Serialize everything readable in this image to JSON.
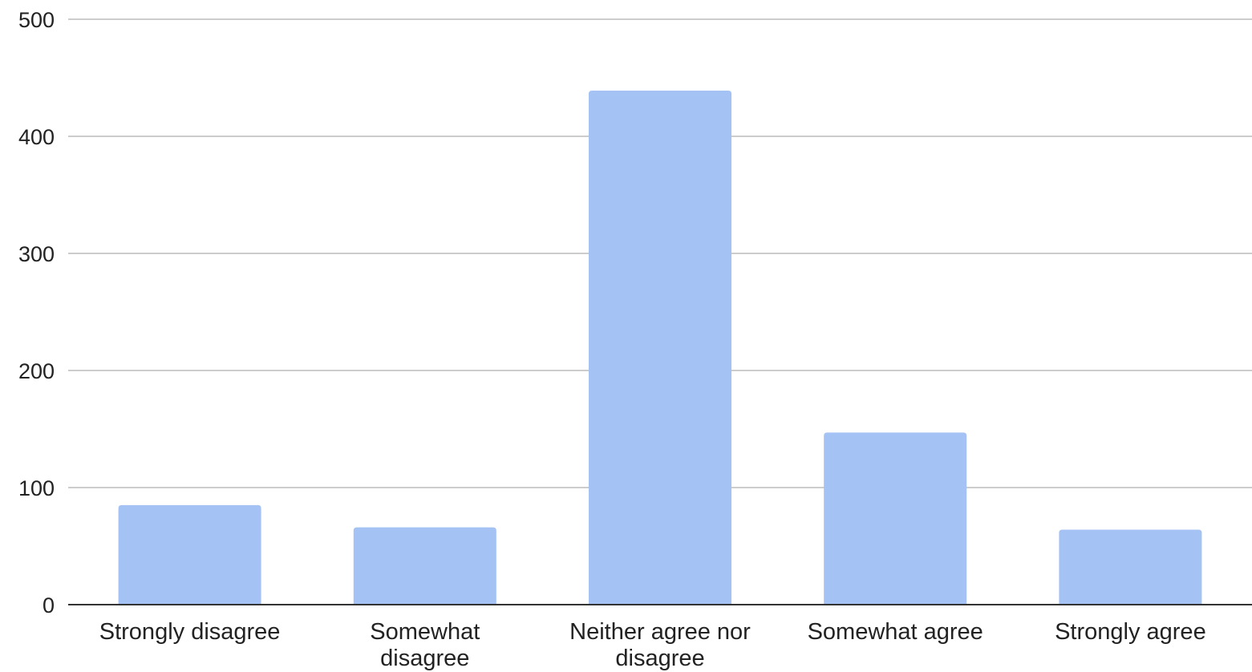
{
  "chart_data": {
    "type": "bar",
    "categories": [
      [
        "Strongly disagree"
      ],
      [
        "Somewhat",
        "disagree"
      ],
      [
        "Neither agree nor",
        "disagree"
      ],
      [
        "Somewhat agree"
      ],
      [
        "Strongly agree"
      ]
    ],
    "values": [
      85,
      66,
      439,
      147,
      64
    ],
    "title": "",
    "xlabel": "",
    "ylabel": "",
    "ylim": [
      0,
      500
    ],
    "yticks": [
      "0",
      "100",
      "200",
      "300",
      "400",
      "500"
    ],
    "grid": true,
    "legend": "none",
    "colors": {
      "bar": "#a4c2f4",
      "grid": "#cccccc",
      "axis": "#333333",
      "text": "#222222"
    }
  }
}
